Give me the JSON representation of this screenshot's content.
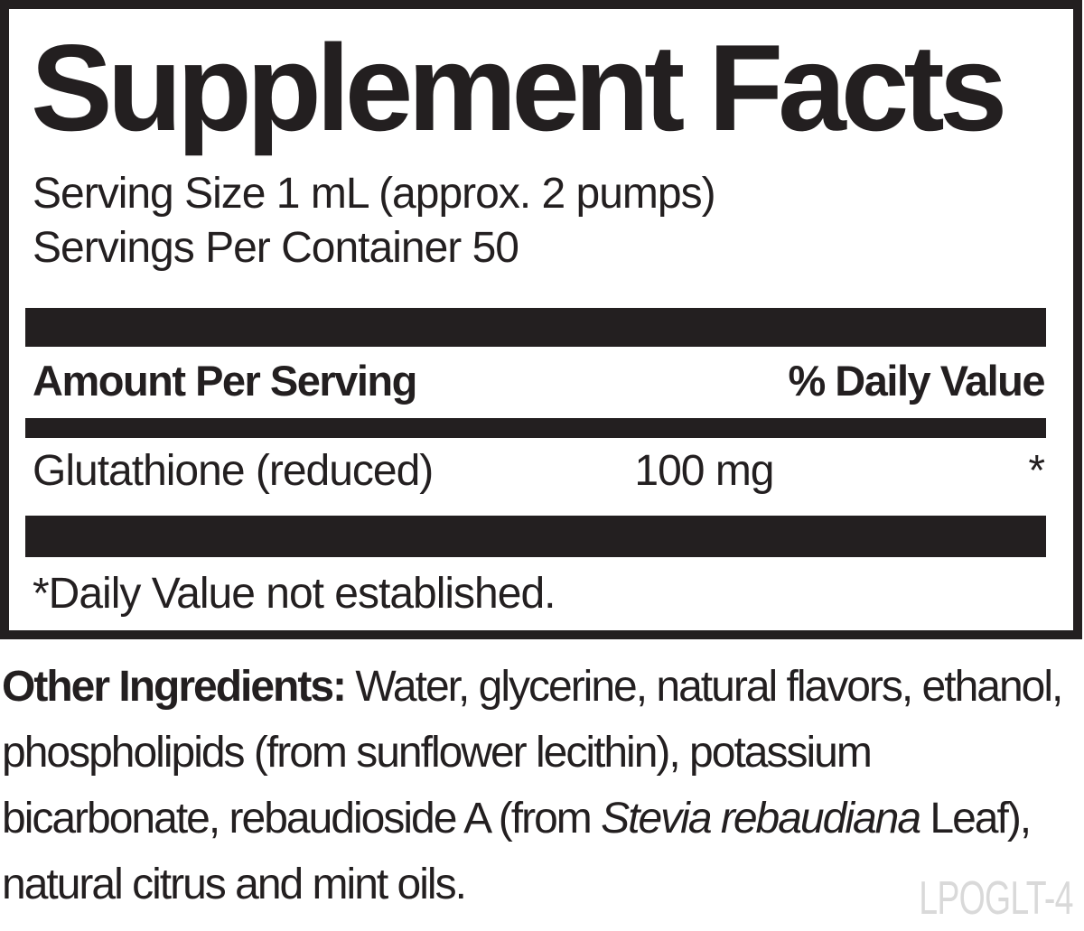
{
  "panel": {
    "title": "Supplement Facts",
    "serving_size": "Serving Size 1 mL (approx. 2 pumps)",
    "servings_per_container": "Servings Per Container 50",
    "table": {
      "amount_header": "Amount Per Serving",
      "daily_value_header": "% Daily Value",
      "row": {
        "name": "Glutathione (reduced)",
        "amount": "100 mg",
        "daily_value": "*"
      }
    },
    "footnote": "*Daily Value not established."
  },
  "other_ingredients": {
    "label": "Other Ingredients:",
    "line1_rest": " Water, glycerine, natural flavors, ethanol,",
    "line2": "phospholipids (from sunflower lecithin), potassium",
    "line3_before_italic": "bicarbonate, rebaudioside A (from ",
    "line3_italic": "Stevia rebaudiana",
    "line3_after_italic": " Leaf),",
    "line4": "natural citrus and mint oils."
  },
  "product_code": "LPOGLT-4",
  "colors": {
    "ink": "#231f20",
    "code_gray": "#d9d9d9",
    "background": "#ffffff"
  }
}
